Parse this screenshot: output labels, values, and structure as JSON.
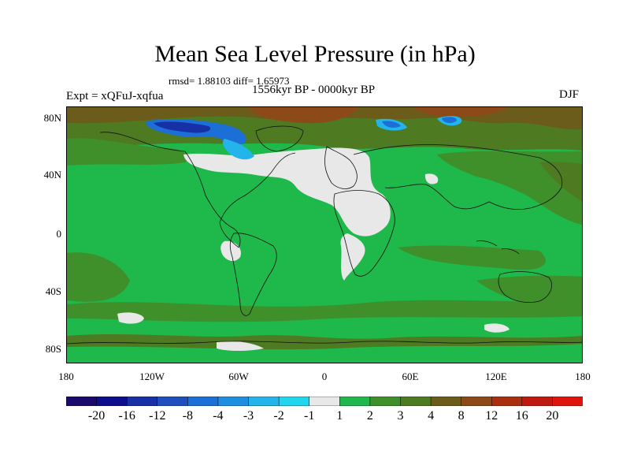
{
  "title": "Mean Sea Level Pressure (in hPa)",
  "stats": "rmsd= 1.88103 diff= 1.65973",
  "experiment": "Expt = xQFuJ-xqfua",
  "period": "1556kyr BP - 0000kyr BP",
  "season": "DJF",
  "lat_ticks": [
    "80N",
    "40N",
    "0",
    "40S",
    "80S"
  ],
  "lon_ticks": [
    "180",
    "120W",
    "60W",
    "0",
    "60E",
    "120E",
    "180"
  ],
  "colorbar": {
    "labels": [
      "-20",
      "-16",
      "-12",
      "-8",
      "-4",
      "-3",
      "-2",
      "-1",
      "1",
      "2",
      "3",
      "4",
      "8",
      "12",
      "16",
      "20"
    ],
    "colors": [
      "#1b0a6b",
      "#0e0e8c",
      "#1730a6",
      "#1f4fbf",
      "#1c6fd6",
      "#1e8fe0",
      "#22b4ea",
      "#20d6ee",
      "#e8e8e8",
      "#20b84c",
      "#3f8f2a",
      "#4e7a22",
      "#6b5c1b",
      "#8b4a18",
      "#a8300f",
      "#c01a10",
      "#e0140f"
    ]
  },
  "chart_data": {
    "type": "heatmap",
    "title": "Mean Sea Level Pressure (in hPa)",
    "variable": "Mean Sea Level Pressure difference (hPa)",
    "season": "DJF",
    "experiment": "xQFuJ-xqfua",
    "rmsd": 1.88103,
    "diff": 1.65973,
    "x_ticks": [
      "180",
      "120W",
      "60W",
      "0",
      "60E",
      "120E",
      "180"
    ],
    "y_ticks": [
      "80N",
      "40N",
      "0",
      "40S",
      "80S"
    ],
    "color_levels": [
      -20,
      -16,
      -12,
      -8,
      -4,
      -3,
      -2,
      -1,
      1,
      2,
      3,
      4,
      8,
      12,
      16,
      20
    ]
  }
}
